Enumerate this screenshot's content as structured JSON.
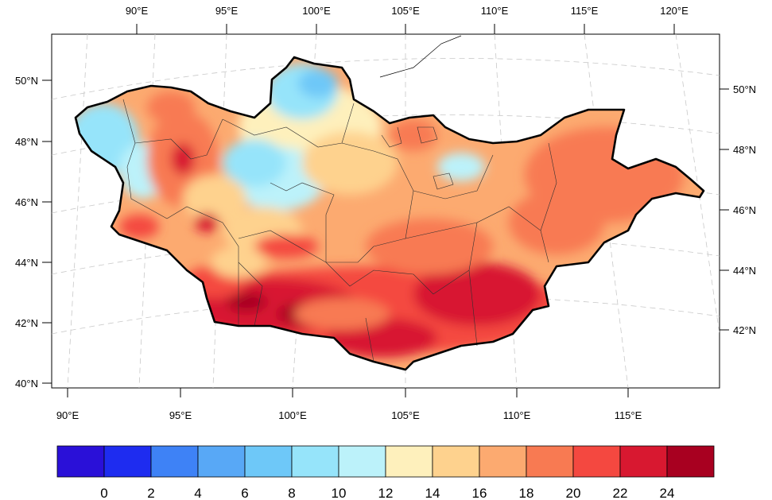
{
  "map": {
    "top_lon_labels": [
      "90°E",
      "95°E",
      "100°E",
      "105°E",
      "110°E",
      "115°E",
      "120°E"
    ],
    "bottom_lon_labels": [
      "90°E",
      "95°E",
      "100°E",
      "105°E",
      "110°E",
      "115°E"
    ],
    "left_lat_labels": [
      "50°N",
      "48°N",
      "46°N",
      "44°N",
      "42°N",
      "40°N"
    ],
    "right_lat_labels": [
      "50°N",
      "48°N",
      "46°N",
      "44°N",
      "42°N"
    ]
  },
  "colorbar": {
    "colors": [
      "#2a10d8",
      "#1e2cf0",
      "#3e82f6",
      "#58a8f6",
      "#6ec8f8",
      "#96e4fa",
      "#bcf2fa",
      "#fef0bc",
      "#fed28e",
      "#fcaa70",
      "#f87a52",
      "#f44840",
      "#d81830",
      "#a80020"
    ],
    "labels": [
      "0",
      "2",
      "4",
      "6",
      "8",
      "10",
      "12",
      "14",
      "16",
      "18",
      "20",
      "22",
      "24"
    ]
  }
}
